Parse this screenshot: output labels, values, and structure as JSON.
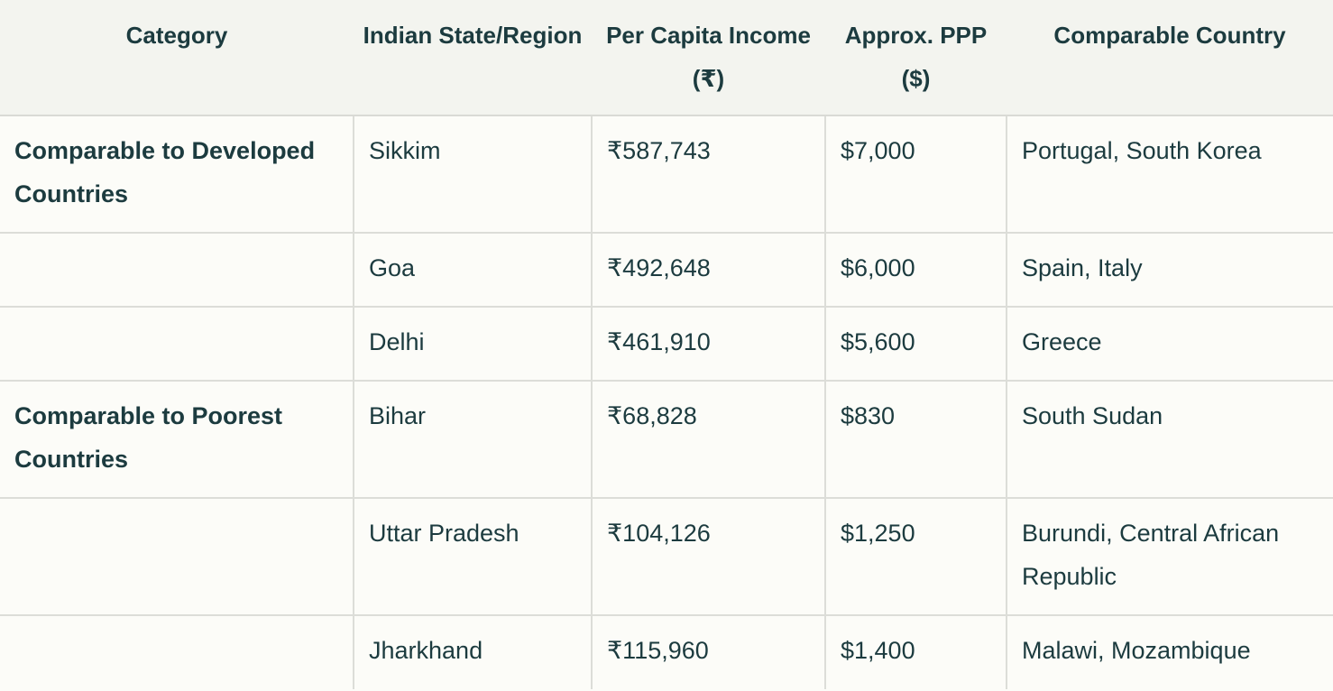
{
  "table": {
    "headers": [
      "Category",
      "Indian State/Region",
      "Per Capita Income (₹)",
      "Approx. PPP ($)",
      "Comparable Country"
    ],
    "rows": [
      {
        "category": "Comparable to Developed Countries",
        "state": "Sikkim",
        "income": "₹587,743",
        "ppp": "$7,000",
        "country": "Portugal, South Korea"
      },
      {
        "category": "",
        "state": "Goa",
        "income": "₹492,648",
        "ppp": "$6,000",
        "country": "Spain, Italy"
      },
      {
        "category": "",
        "state": "Delhi",
        "income": "₹461,910",
        "ppp": "$5,600",
        "country": "Greece"
      },
      {
        "category": "Comparable to Poorest Countries",
        "state": "Bihar",
        "income": "₹68,828",
        "ppp": "$830",
        "country": "South Sudan"
      },
      {
        "category": "",
        "state": "Uttar Pradesh",
        "income": "₹104,126",
        "ppp": "$1,250",
        "country": "Burundi, Central African Republic"
      },
      {
        "category": "",
        "state": "Jharkhand",
        "income": "₹115,960",
        "ppp": "$1,400",
        "country": "Malawi, Mozambique"
      }
    ]
  }
}
